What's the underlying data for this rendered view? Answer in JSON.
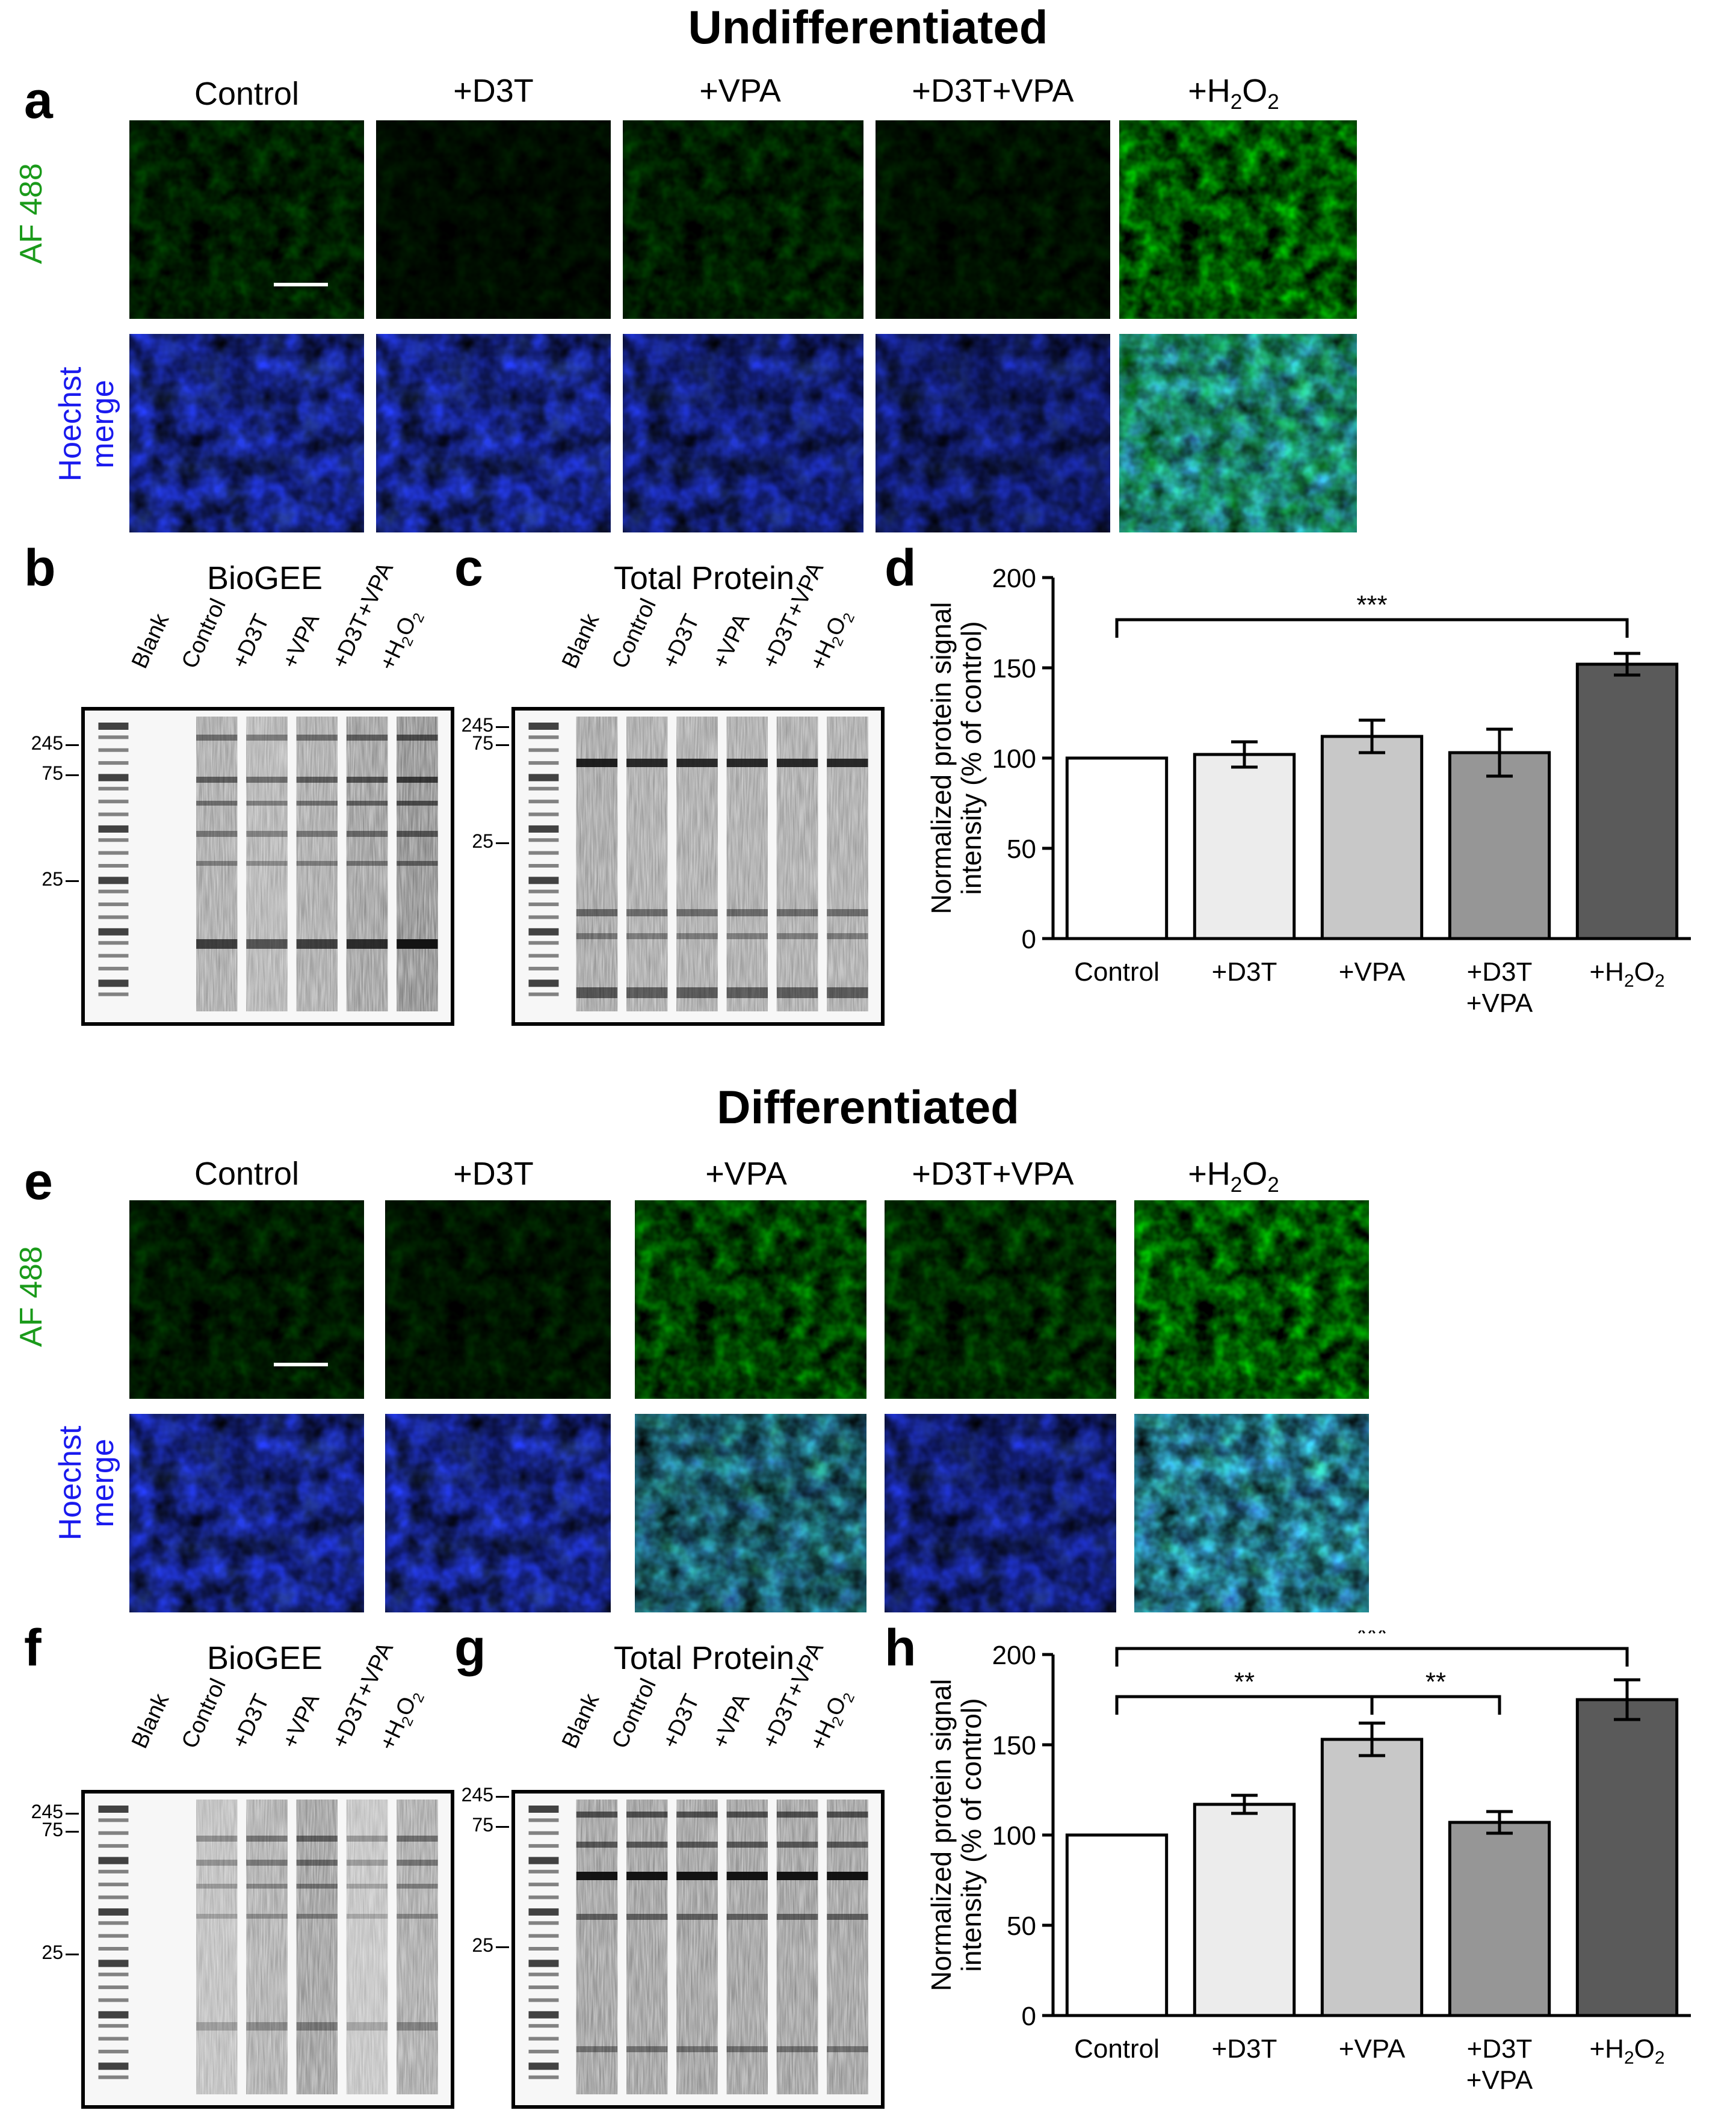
{
  "titles": {
    "undiff": "Undifferentiated",
    "diff": "Differentiated"
  },
  "panels": {
    "a": "a",
    "b": "b",
    "c": "c",
    "d": "d",
    "e": "e",
    "f": "f",
    "g": "g",
    "h": "h"
  },
  "conditions": [
    "Control",
    "+D3T",
    "+VPA",
    "+D3T+VPA",
    "+H"
  ],
  "h2o2": {
    "prefix": "+H",
    "sub1": "2",
    "mid": "O",
    "sub2": "2"
  },
  "row_labels": {
    "af": "AF 488",
    "hoechst1": "Hoechst",
    "hoechst2": "merge"
  },
  "blot_titles": {
    "biogee": "BioGEE",
    "total": "Total Protein"
  },
  "lanes_biogee": [
    "Blank",
    "Control",
    "+D3T",
    "+VPA",
    "+D3T+VPA",
    "+H"
  ],
  "lanes_total": [
    "Blank",
    "Control",
    "+D3T",
    "+VPA",
    "+D3T+VPA",
    "+H"
  ],
  "mw_markers_bcf": [
    "245",
    "75",
    "25"
  ],
  "mw_markers_g": [
    "245",
    "75",
    "25"
  ],
  "colors": {
    "af": "#1a9a1a",
    "hoechst": "#1a1aee",
    "bar1": "#ffffff",
    "bar2": "#ececec",
    "bar3": "#c8c8c8",
    "bar4": "#969696",
    "bar5": "#5a5a5a"
  },
  "chart_data": [
    {
      "type": "bar",
      "panel": "d",
      "categories": [
        "Control",
        "+D3T",
        "+VPA",
        "+D3T\n+VPA",
        "+H2O2"
      ],
      "values": [
        100,
        102,
        112,
        103,
        152
      ],
      "errors": [
        0,
        7,
        9,
        13,
        6
      ],
      "ylabel": [
        "Normalized protein signal",
        "intensity (% of control)"
      ],
      "ylim": [
        0,
        200
      ],
      "yticks": [
        0,
        50,
        100,
        150,
        200
      ],
      "significance": [
        {
          "from": 0,
          "to": 4,
          "label": "***"
        }
      ]
    },
    {
      "type": "bar",
      "panel": "h",
      "categories": [
        "Control",
        "+D3T",
        "+VPA",
        "+D3T\n+VPA",
        "+H2O2"
      ],
      "values": [
        100,
        117,
        153,
        107,
        175
      ],
      "errors": [
        0,
        5,
        9,
        6,
        11
      ],
      "ylabel": [
        "Normalized protein signal",
        "intensity (% of control)"
      ],
      "ylim": [
        0,
        200
      ],
      "yticks": [
        0,
        50,
        100,
        150,
        200
      ],
      "significance": [
        {
          "from": 0,
          "to": 2,
          "label": "**"
        },
        {
          "from": 2,
          "to": 3,
          "label": "**"
        },
        {
          "from": 0,
          "to": 4,
          "label": "***"
        }
      ]
    }
  ]
}
